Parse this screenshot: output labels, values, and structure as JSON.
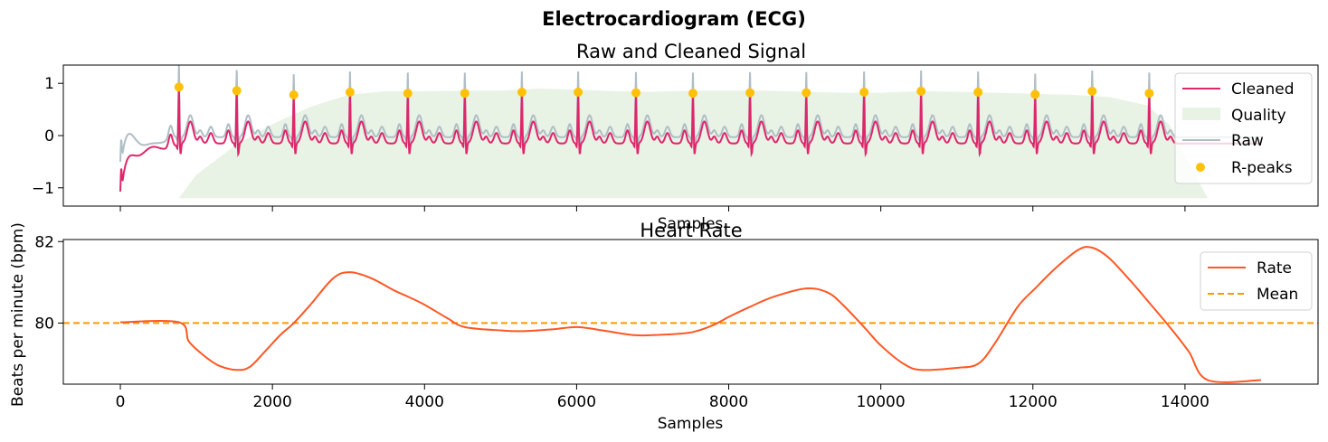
{
  "figure_title": "Electrocardiogram (ECG)",
  "colors": {
    "cleaned": "#e0266b",
    "raw": "#b0bec5",
    "quality": "#e8f3e6",
    "rpeaks": "#ffc107",
    "rate": "#ff5722",
    "mean": "#ff9800"
  },
  "chart_data": [
    {
      "type": "line",
      "title": "Raw and Cleaned Signal",
      "xlabel": "Samples",
      "ylabel": "",
      "xlim": [
        -750,
        15750
      ],
      "ylim": [
        -1.35,
        1.35
      ],
      "yticks": [
        -1,
        0,
        1
      ],
      "ytick_labels": [
        "−1",
        "0",
        "1"
      ],
      "xticks": [
        0,
        2000,
        4000,
        6000,
        8000,
        10000,
        12000,
        14000
      ],
      "show_xtick_labels": false,
      "legend": {
        "position": "top-right",
        "entries": [
          {
            "label": "Cleaned",
            "kind": "line",
            "color_key": "cleaned"
          },
          {
            "label": "Quality",
            "kind": "patch",
            "color_key": "quality"
          },
          {
            "label": "Raw",
            "kind": "line",
            "color_key": "raw"
          },
          {
            "label": "R-peaks",
            "kind": "marker",
            "color_key": "rpeaks"
          }
        ]
      },
      "rpeak_samples": [
        770,
        1530,
        2280,
        3020,
        3780,
        4530,
        5280,
        6020,
        6780,
        7530,
        8280,
        9020,
        9780,
        10530,
        11280,
        12030,
        12780,
        13530
      ],
      "rpeak_values": [
        0.93,
        0.86,
        0.78,
        0.83,
        0.81,
        0.81,
        0.83,
        0.83,
        0.82,
        0.81,
        0.82,
        0.82,
        0.83,
        0.85,
        0.83,
        0.79,
        0.85,
        0.81
      ],
      "quality": {
        "baseline": -1.2,
        "samples": [
          770,
          1000,
          1500,
          2000,
          2500,
          3000,
          3500,
          4000,
          4500,
          5000,
          5500,
          6000,
          6500,
          7000,
          7500,
          8000,
          8500,
          9000,
          9500,
          10000,
          10500,
          11000,
          11500,
          12000,
          12500,
          13000,
          13500,
          13800,
          14000,
          14300
        ],
        "values": [
          -1.2,
          -0.75,
          -0.2,
          0.22,
          0.55,
          0.78,
          0.85,
          0.85,
          0.86,
          0.86,
          0.9,
          0.88,
          0.85,
          0.84,
          0.86,
          0.86,
          0.86,
          0.84,
          0.82,
          0.82,
          0.85,
          0.84,
          0.82,
          0.8,
          0.78,
          0.74,
          0.58,
          0.2,
          -0.4,
          -1.2
        ]
      }
    },
    {
      "type": "line",
      "title": "Heart Rate",
      "xlabel": "Samples",
      "ylabel": "Beats per minute (bpm)",
      "xlim": [
        -750,
        15750
      ],
      "ylim": [
        78.5,
        82.05
      ],
      "yticks": [
        80,
        82
      ],
      "xticks": [
        0,
        2000,
        4000,
        6000,
        8000,
        10000,
        12000,
        14000
      ],
      "legend": {
        "position": "top-right",
        "entries": [
          {
            "label": "Rate",
            "kind": "line",
            "color_key": "rate"
          },
          {
            "label": "Mean",
            "kind": "dashed",
            "color_key": "mean"
          }
        ]
      },
      "mean": 80.0,
      "series": [
        {
          "name": "Rate",
          "x": [
            0,
            770,
            900,
            1100,
            1300,
            1530,
            1700,
            1900,
            2100,
            2280,
            2500,
            2800,
            3020,
            3300,
            3600,
            3780,
            4000,
            4300,
            4530,
            5000,
            5280,
            5700,
            6020,
            6400,
            6780,
            7200,
            7530,
            7800,
            8000,
            8280,
            8600,
            9020,
            9300,
            9500,
            9780,
            10000,
            10300,
            10530,
            11000,
            11280,
            11500,
            11800,
            12030,
            12300,
            12600,
            12780,
            13000,
            13300,
            13530,
            13800,
            14050,
            14300,
            15000
          ],
          "values": [
            80.02,
            80.02,
            79.55,
            79.2,
            78.95,
            78.85,
            78.92,
            79.3,
            79.7,
            80.0,
            80.45,
            81.1,
            81.25,
            81.1,
            80.8,
            80.65,
            80.45,
            80.12,
            79.9,
            79.82,
            79.8,
            79.85,
            79.9,
            79.8,
            79.7,
            79.72,
            79.78,
            79.95,
            80.15,
            80.4,
            80.65,
            80.85,
            80.75,
            80.45,
            79.9,
            79.45,
            79.0,
            78.85,
            78.9,
            79.0,
            79.5,
            80.4,
            80.85,
            81.35,
            81.8,
            81.85,
            81.6,
            81.0,
            80.5,
            79.9,
            79.3,
            78.6,
            78.6
          ]
        }
      ]
    }
  ]
}
